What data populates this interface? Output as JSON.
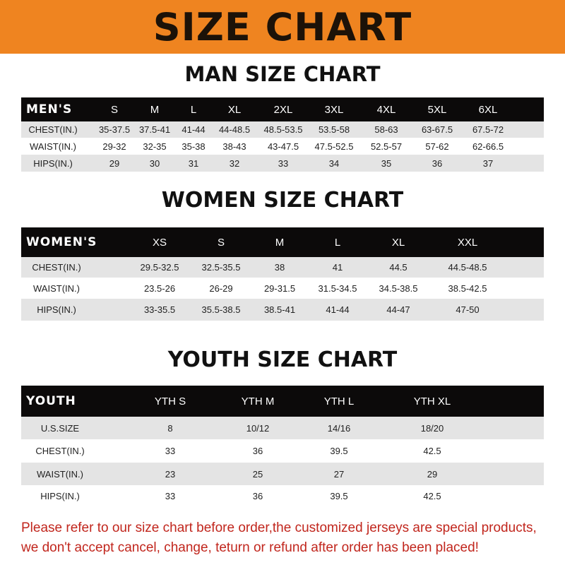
{
  "banner_title": "SIZE CHART",
  "colors": {
    "banner": "#ef8420",
    "header_row": "#0c0a0a",
    "notice": "#c1261d"
  },
  "men": {
    "title": "MAN SIZE CHART",
    "header": [
      "MEN'S",
      "S",
      "M",
      "L",
      "XL",
      "2XL",
      "3XL",
      "4XL",
      "5XL",
      "6XL"
    ],
    "rows": [
      [
        "CHEST(IN.)",
        "35-37.5",
        "37.5-41",
        "41-44",
        "44-48.5",
        "48.5-53.5",
        "53.5-58",
        "58-63",
        "63-67.5",
        "67.5-72"
      ],
      [
        "WAIST(IN.)",
        "29-32",
        "32-35",
        "35-38",
        "38-43",
        "43-47.5",
        "47.5-52.5",
        "52.5-57",
        "57-62",
        "62-66.5"
      ],
      [
        "HIPS(IN.)",
        "29",
        "30",
        "31",
        "32",
        "33",
        "34",
        "35",
        "36",
        "37"
      ]
    ]
  },
  "women": {
    "title": "WOMEN SIZE CHART",
    "header": [
      "WOMEN'S",
      "XS",
      "S",
      "M",
      "L",
      "XL",
      "XXL"
    ],
    "rows": [
      [
        "CHEST(IN.)",
        "29.5-32.5",
        "32.5-35.5",
        "38",
        "41",
        "44.5",
        "44.5-48.5"
      ],
      [
        "WAIST(IN.)",
        "23.5-26",
        "26-29",
        "29-31.5",
        "31.5-34.5",
        "34.5-38.5",
        "38.5-42.5"
      ],
      [
        "HIPS(IN.)",
        "33-35.5",
        "35.5-38.5",
        "38.5-41",
        "41-44",
        "44-47",
        "47-50"
      ]
    ]
  },
  "youth": {
    "title": "YOUTH SIZE CHART",
    "header": [
      "YOUTH",
      "YTH S",
      "YTH M",
      "YTH L",
      "YTH XL"
    ],
    "rows": [
      [
        "U.S.SIZE",
        "8",
        "10/12",
        "14/16",
        "18/20"
      ],
      [
        "CHEST(IN.)",
        "33",
        "36",
        "39.5",
        "42.5"
      ],
      [
        "WAIST(IN.)",
        "23",
        "25",
        "27",
        "29"
      ],
      [
        "HIPS(IN.)",
        "33",
        "36",
        "39.5",
        "42.5"
      ]
    ]
  },
  "notice": [
    "Please refer to our size chart before order,the customized jerseys are special products,",
    "we don't accept cancel, change, teturn or refund after order has been placed!"
  ]
}
